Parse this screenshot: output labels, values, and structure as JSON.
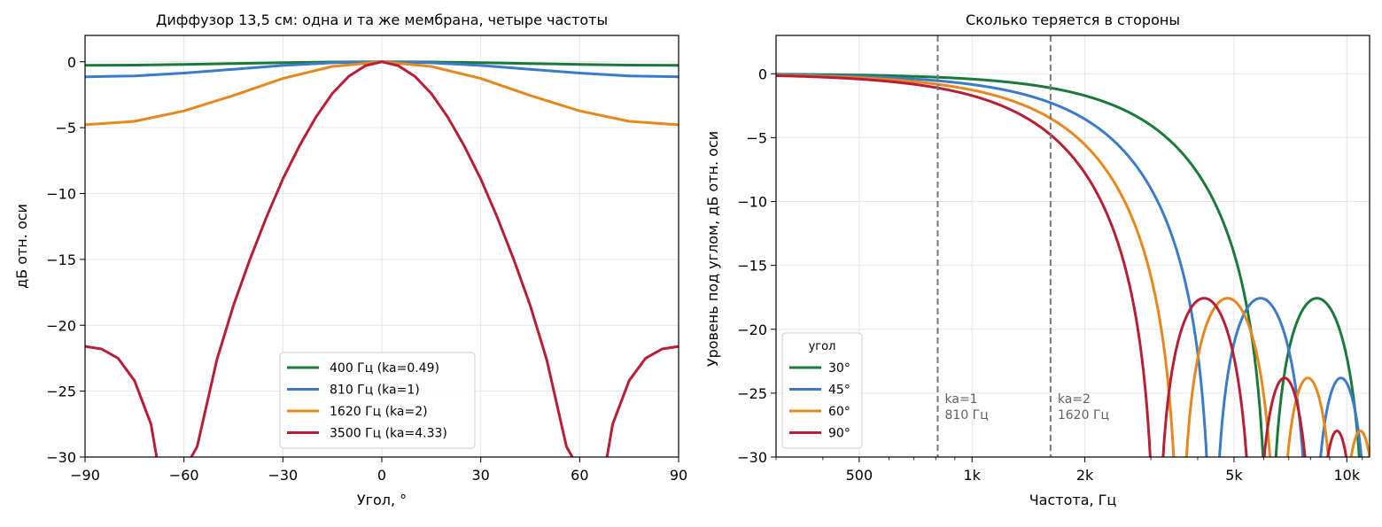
{
  "chart_data": [
    {
      "type": "line",
      "title": "Диффузор 13,5 см: одна и та же мембрана, четыре частоты",
      "xlabel": "Угол, °",
      "ylabel": "дБ отн. оси",
      "xlim": [
        -90,
        90
      ],
      "ylim": [
        -30,
        2
      ],
      "xticks": [
        -90,
        -60,
        -30,
        0,
        30,
        60,
        90
      ],
      "xtick_labels": [
        "−90",
        "−60",
        "−30",
        "0",
        "30",
        "60",
        "90"
      ],
      "yticks": [
        0,
        -5,
        -10,
        -15,
        -20,
        -25,
        -30
      ],
      "ytick_labels": [
        "0",
        "−5",
        "−10",
        "−15",
        "−20",
        "−25",
        "−30"
      ],
      "grid": true,
      "legend_position": "bottom-right",
      "series": [
        {
          "name": "400 Гц  (ka=0.49)",
          "color": "#1b7a3a",
          "x": [
            -90,
            -75,
            -60,
            -45,
            -30,
            -15,
            0,
            15,
            30,
            45,
            60,
            75,
            90
          ],
          "y": [
            -0.27,
            -0.25,
            -0.2,
            -0.13,
            -0.07,
            -0.02,
            0,
            -0.02,
            -0.07,
            -0.13,
            -0.2,
            -0.25,
            -0.27
          ]
        },
        {
          "name": "810 Гц  (ka=1)",
          "color": "#3a7cc8",
          "x": [
            -90,
            -75,
            -60,
            -45,
            -30,
            -15,
            0,
            15,
            30,
            45,
            60,
            75,
            90
          ],
          "y": [
            -1.14,
            -1.07,
            -0.86,
            -0.57,
            -0.28,
            -0.08,
            0,
            -0.08,
            -0.28,
            -0.57,
            -0.86,
            -1.07,
            -1.14
          ]
        },
        {
          "name": "1620 Гц  (ka=2)",
          "color": "#e8871e",
          "x": [
            -90,
            -75,
            -60,
            -45,
            -30,
            -15,
            0,
            15,
            30,
            45,
            60,
            75,
            90
          ],
          "y": [
            -4.78,
            -4.52,
            -3.73,
            -2.56,
            -1.27,
            -0.35,
            0,
            -0.35,
            -1.27,
            -2.56,
            -3.73,
            -4.52,
            -4.78
          ]
        },
        {
          "name": "3500 Гц  (ka=4.33)",
          "color": "#b81f35",
          "x": [
            -90,
            -85,
            -80,
            -75,
            -70,
            -67.6,
            -60,
            -56,
            -50,
            -45,
            -40,
            -35,
            -30,
            -25,
            -20,
            -15,
            -10,
            -5,
            0,
            5,
            10,
            15,
            20,
            25,
            30,
            35,
            40,
            45,
            50,
            56,
            60,
            67.6,
            70,
            75,
            80,
            85,
            90
          ],
          "y": [
            -21.6,
            -21.8,
            -22.5,
            -24.2,
            -27.5,
            -31,
            -31,
            -29.2,
            -22.6,
            -18.5,
            -15.0,
            -11.8,
            -8.9,
            -6.4,
            -4.2,
            -2.4,
            -1.1,
            -0.3,
            0,
            -0.3,
            -1.1,
            -2.4,
            -4.2,
            -6.4,
            -8.9,
            -11.8,
            -15.0,
            -18.5,
            -22.6,
            -29.2,
            -31,
            -31,
            -27.5,
            -24.2,
            -22.5,
            -21.8,
            -21.6
          ]
        }
      ]
    },
    {
      "type": "line",
      "title": "Сколько теряется в стороны",
      "xlabel": "Частота, Гц",
      "ylabel": "Уровень под углом, дБ отн. оси",
      "xscale": "log",
      "xlim": [
        300,
        11500
      ],
      "ylim": [
        -30,
        3
      ],
      "xticks": [
        500,
        1000,
        2000,
        5000,
        10000
      ],
      "xtick_labels": [
        "500",
        "1k",
        "2k",
        "5k",
        "10k"
      ],
      "yticks": [
        0,
        -5,
        -10,
        -15,
        -20,
        -25,
        -30
      ],
      "ytick_labels": [
        "0",
        "−5",
        "−10",
        "−15",
        "−20",
        "−25",
        "−30"
      ],
      "grid": true,
      "legend_title": "угол",
      "legend_position": "bottom-left",
      "vlines": [
        {
          "x": 810,
          "label1": "ka=1",
          "label2": "810 Гц"
        },
        {
          "x": 1620,
          "label1": "ka=2",
          "label2": "1620 Гц"
        }
      ],
      "series": [
        {
          "name": "30°",
          "color": "#1b7a3a",
          "angle": 30
        },
        {
          "name": "45°",
          "color": "#3a7cc8",
          "angle": 45
        },
        {
          "name": "60°",
          "color": "#e8871e",
          "angle": 60
        },
        {
          "name": "90°",
          "color": "#b81f35",
          "angle": 90
        }
      ]
    }
  ]
}
